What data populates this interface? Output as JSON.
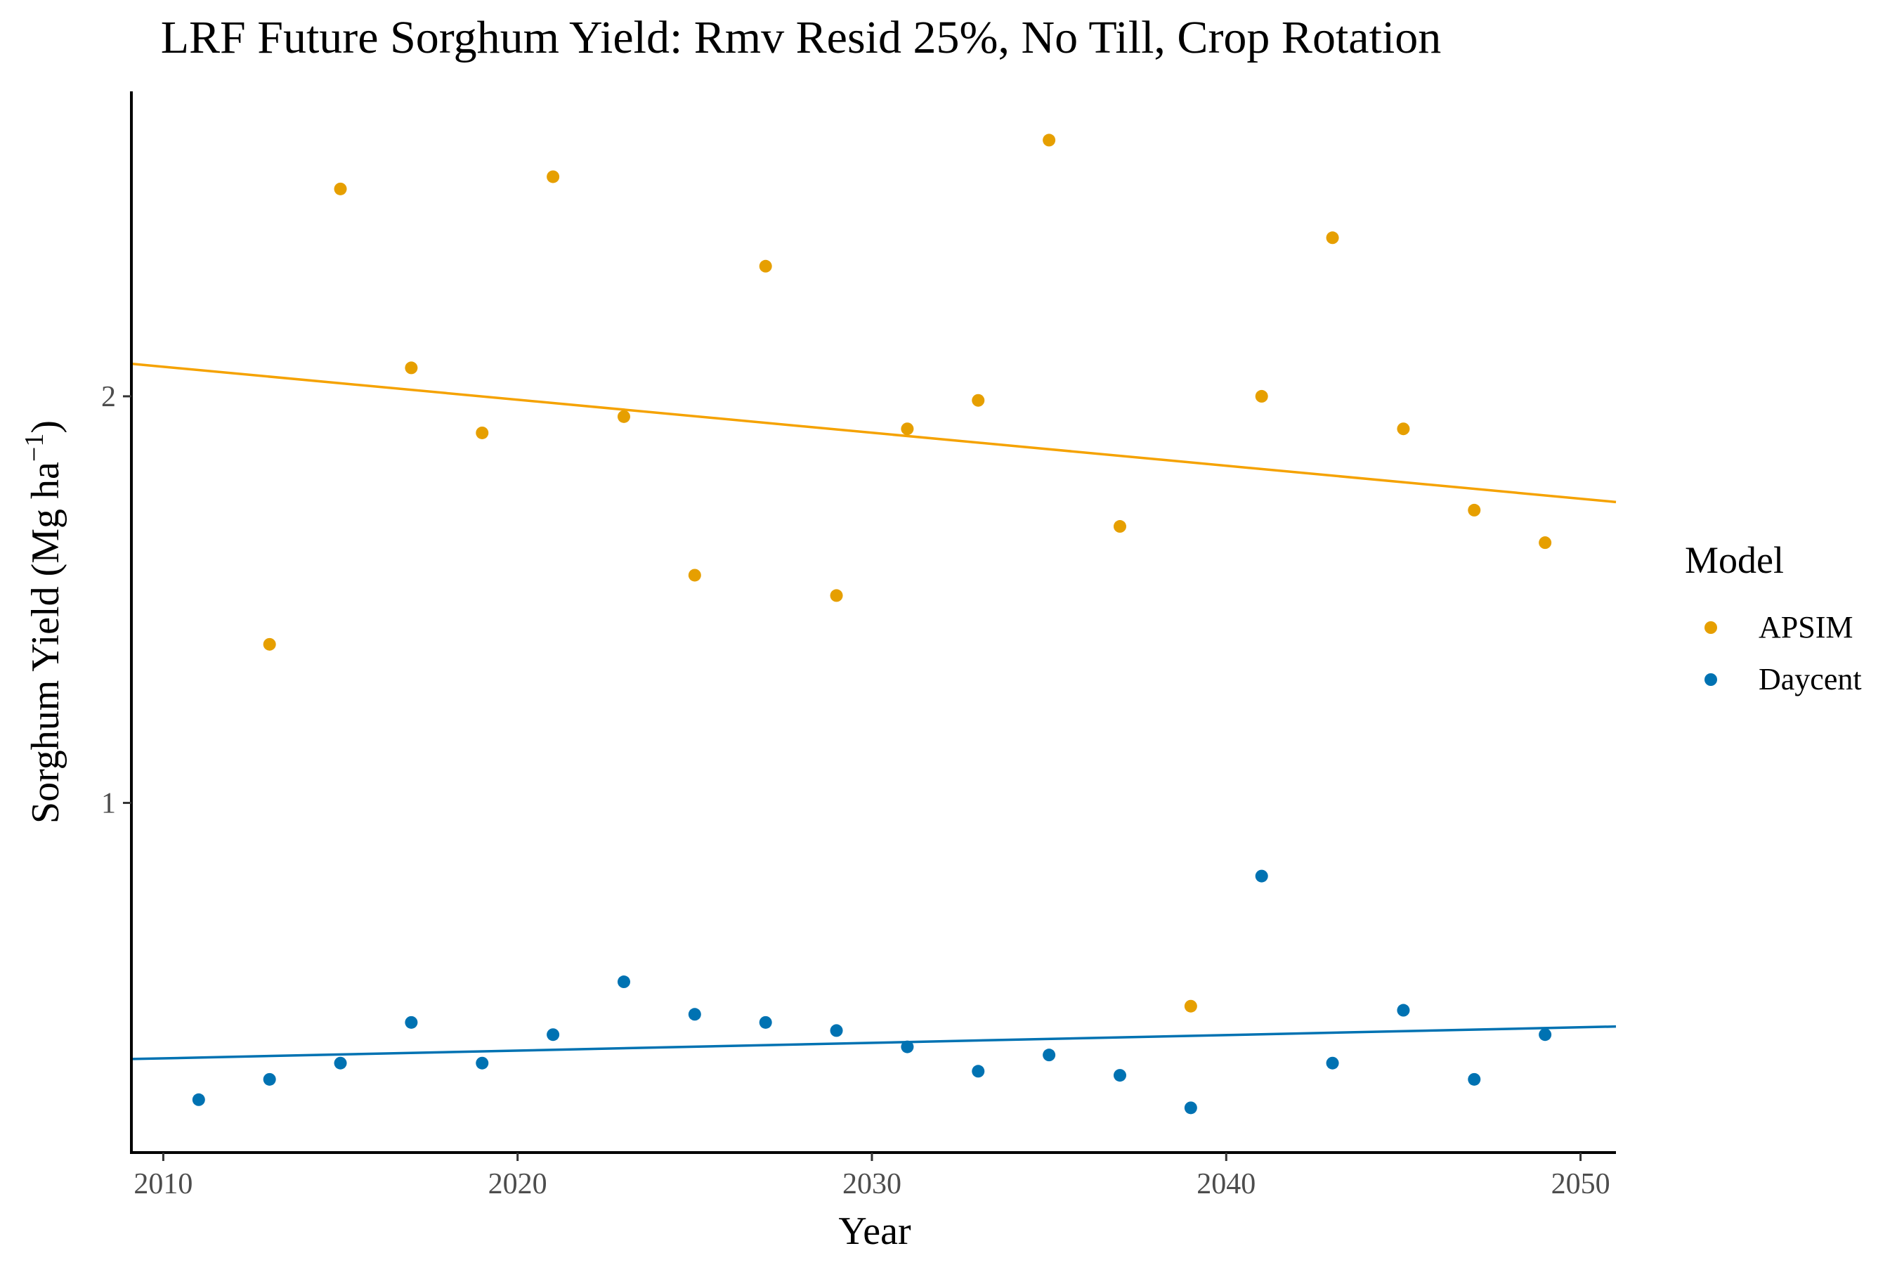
{
  "chart_data": {
    "type": "scatter",
    "title": "LRF Future Sorghum Yield:  Rmv Resid 25%, No Till, Crop Rotation",
    "xlabel": "Year",
    "ylabel_main": "Sorghum Yield (Mg ha",
    "ylabel_sup": "−1",
    "ylabel_close": ")",
    "xlim": [
      2009.1,
      2051
    ],
    "ylim": [
      0.14,
      2.75
    ],
    "x_ticks": [
      2010,
      2020,
      2030,
      2040,
      2050
    ],
    "y_ticks": [
      1,
      2
    ],
    "grid": false,
    "legend": {
      "title": "Model",
      "position": "right",
      "entries": [
        "APSIM",
        "Daycent"
      ]
    },
    "series": [
      {
        "name": "APSIM",
        "color": "#E69F00",
        "line_color": "#F5A200",
        "x": [
          2013,
          2015,
          2017,
          2019,
          2021,
          2023,
          2025,
          2027,
          2029,
          2031,
          2033,
          2035,
          2037,
          2039,
          2041,
          2043,
          2045,
          2047,
          2049
        ],
        "y": [
          1.39,
          2.51,
          2.07,
          1.91,
          2.54,
          1.95,
          1.56,
          2.32,
          1.51,
          1.92,
          1.99,
          2.63,
          1.68,
          0.5,
          2.0,
          2.39,
          1.92,
          1.72,
          1.64
        ],
        "trend": [
          2.08,
          1.74
        ]
      },
      {
        "name": "Daycent",
        "color": "#0072B2",
        "line_color": "#0072B2",
        "x": [
          2011,
          2013,
          2015,
          2017,
          2019,
          2021,
          2023,
          2025,
          2027,
          2029,
          2031,
          2033,
          2035,
          2037,
          2039,
          2041,
          2043,
          2045,
          2047,
          2049
        ],
        "y": [
          0.27,
          0.32,
          0.36,
          0.46,
          0.36,
          0.43,
          0.56,
          0.48,
          0.46,
          0.44,
          0.4,
          0.34,
          0.38,
          0.33,
          0.25,
          0.82,
          0.36,
          0.49,
          0.32,
          0.43
        ],
        "trend": [
          0.37,
          0.45
        ]
      }
    ]
  }
}
